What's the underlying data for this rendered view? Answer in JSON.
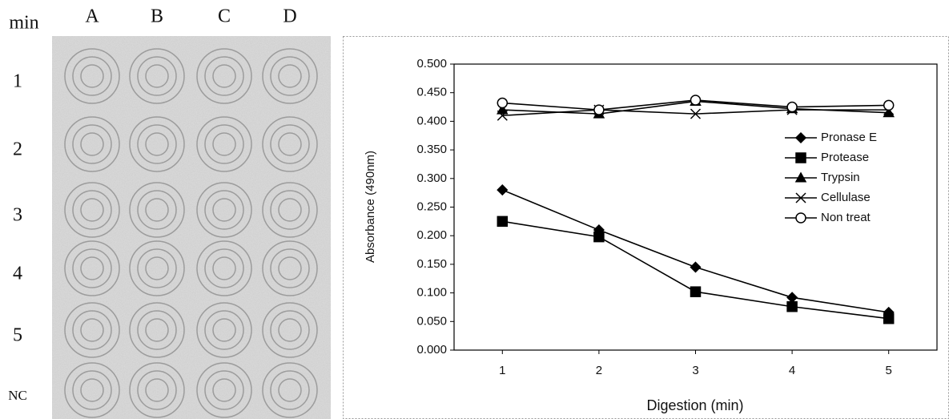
{
  "panel_labels": {
    "corner": "min",
    "columns": [
      "A",
      "B",
      "C",
      "D"
    ],
    "rows": [
      "1",
      "2",
      "3",
      "4",
      "5",
      "NC"
    ]
  },
  "chart_data": {
    "type": "line",
    "x_label": "Digestion (min)",
    "y_label": "Absorbance (490nm)",
    "x": [
      1,
      2,
      3,
      4,
      5
    ],
    "xlim": [
      0.5,
      5.5
    ],
    "xticks": [
      1,
      2,
      3,
      4,
      5
    ],
    "ylim": [
      0,
      0.5
    ],
    "yticks": [
      {
        "value": 0,
        "label": "0.000"
      },
      {
        "value": 0.05,
        "label": "0.050"
      },
      {
        "value": 0.1,
        "label": "0.100"
      },
      {
        "value": 0.15,
        "label": "0.150"
      },
      {
        "value": 0.2,
        "label": "0.200"
      },
      {
        "value": 0.25,
        "label": "0.250"
      },
      {
        "value": 0.3,
        "label": "0.300"
      },
      {
        "value": 0.35,
        "label": "0.350"
      },
      {
        "value": 0.4,
        "label": "0.400"
      },
      {
        "value": 0.45,
        "label": "0.450"
      },
      {
        "value": 0.5,
        "label": "0.500"
      }
    ],
    "grid": false,
    "legend": "right",
    "series": [
      {
        "name": "Pronase E",
        "color": "#000000",
        "marker": "diamond",
        "values": [
          0.28,
          0.21,
          0.145,
          0.092,
          0.066
        ]
      },
      {
        "name": "Protease",
        "color": "#000000",
        "marker": "square",
        "values": [
          0.225,
          0.198,
          0.102,
          0.076,
          0.055
        ]
      },
      {
        "name": "Trypsin",
        "color": "#000000",
        "marker": "triangle",
        "values": [
          0.42,
          0.413,
          0.435,
          0.422,
          0.415
        ]
      },
      {
        "name": "Cellulase",
        "color": "#000000",
        "marker": "x",
        "values": [
          0.41,
          0.42,
          0.413,
          0.42,
          0.42
        ]
      },
      {
        "name": "Non treat",
        "color": "#000000",
        "marker": "circle",
        "values": [
          0.432,
          0.42,
          0.437,
          0.425,
          0.428
        ]
      }
    ]
  }
}
